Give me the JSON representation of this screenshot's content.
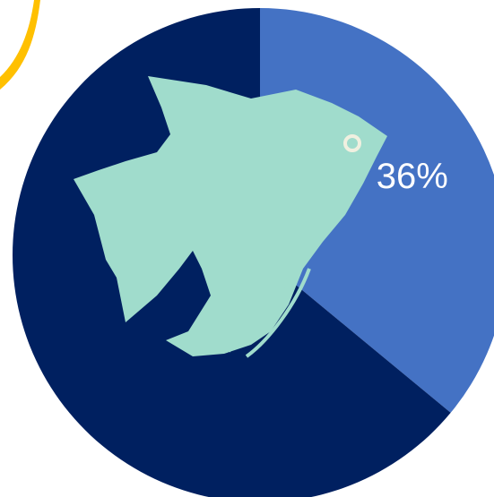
{
  "chart_data": {
    "type": "pie",
    "values": [
      36,
      64
    ],
    "value_labels": [
      "36%",
      null
    ],
    "colors": [
      "#4472c4",
      "#002060"
    ]
  }
}
